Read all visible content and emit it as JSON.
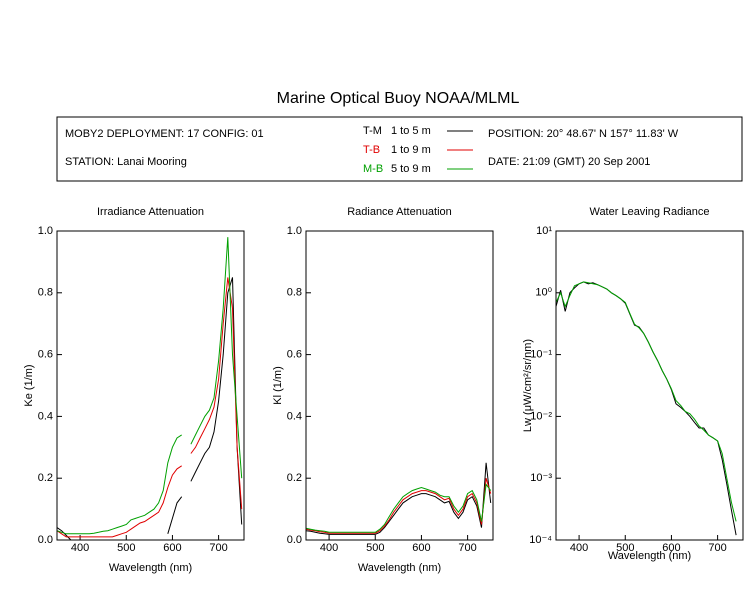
{
  "header": {
    "title": "Marine Optical Buoy NOAA/MLML",
    "deployment": "MOBY2 DEPLOYMENT: 17 CONFIG: 01",
    "station": "STATION: Lanai Mooring",
    "position": "POSITION: 20° 48.67' N   157° 11.83' W",
    "date": "DATE: 21:09 (GMT) 20 Sep 2001",
    "depths": [
      "1 to 5  m",
      "1 to 9  m",
      "5 to 9  m"
    ]
  },
  "chart_data": [
    {
      "type": "line",
      "title": "Irradiance Attenuation",
      "x_label": "Wavelength (nm)",
      "y_label": "Ke  (1/m)",
      "x": [
        350,
        360,
        370,
        380,
        390,
        400,
        410,
        420,
        430,
        440,
        450,
        460,
        470,
        480,
        490,
        500,
        510,
        520,
        530,
        540,
        550,
        560,
        570,
        580,
        590,
        600,
        610,
        620,
        630,
        640,
        650,
        660,
        670,
        680,
        690,
        700,
        710,
        720,
        730,
        740,
        750
      ],
      "xlim": [
        350,
        755
      ],
      "xticks": [
        400,
        500,
        600,
        700
      ],
      "ylim": [
        0,
        1
      ],
      "yticks": [
        {
          "value": 0,
          "label": "0.0"
        },
        0.2,
        0.4,
        0.6,
        0.8,
        {
          "value": 1,
          "label": "1.0"
        }
      ],
      "series": [
        {
          "name": "T-M",
          "color": "#000000",
          "values": [
            0.04,
            0.03,
            0.015,
            0.0,
            null,
            null,
            null,
            null,
            null,
            null,
            null,
            null,
            null,
            null,
            null,
            null,
            null,
            null,
            null,
            null,
            null,
            null,
            null,
            null,
            0.02,
            0.07,
            0.12,
            0.14,
            null,
            0.19,
            0.22,
            0.25,
            0.28,
            0.3,
            0.35,
            0.45,
            0.6,
            0.8,
            0.85,
            0.3,
            0.05
          ]
        },
        {
          "name": "T-B",
          "color": "#e00000",
          "values": [
            0.03,
            0.02,
            0.01,
            0.01,
            0.01,
            0.01,
            0.01,
            0.01,
            0.01,
            0.01,
            0.01,
            0.01,
            0.01,
            0.015,
            0.02,
            0.025,
            0.035,
            0.045,
            0.055,
            0.06,
            0.07,
            0.08,
            0.09,
            0.12,
            0.17,
            0.21,
            0.23,
            0.24,
            null,
            0.28,
            0.3,
            0.33,
            0.36,
            0.39,
            0.43,
            0.52,
            0.7,
            0.85,
            0.75,
            0.3,
            0.1
          ]
        },
        {
          "name": "M-B",
          "color": "#00a000",
          "values": [
            0.03,
            0.025,
            0.02,
            0.02,
            0.02,
            0.02,
            0.02,
            0.02,
            0.022,
            0.025,
            0.028,
            0.03,
            0.035,
            0.04,
            0.045,
            0.05,
            0.065,
            0.07,
            0.075,
            0.08,
            0.09,
            0.1,
            0.12,
            0.16,
            0.25,
            0.3,
            0.33,
            0.34,
            null,
            0.31,
            0.34,
            0.37,
            0.4,
            0.42,
            0.46,
            0.58,
            0.75,
            0.98,
            0.6,
            0.4,
            0.2
          ]
        }
      ]
    },
    {
      "type": "line",
      "title": "Radiance Attenuation",
      "x_label": "Wavelength (nm)",
      "y_label": "Kl  (1/m)",
      "x": [
        350,
        360,
        370,
        380,
        390,
        400,
        410,
        420,
        430,
        440,
        450,
        460,
        470,
        480,
        490,
        500,
        510,
        520,
        530,
        540,
        550,
        560,
        570,
        580,
        590,
        600,
        610,
        620,
        630,
        640,
        650,
        660,
        670,
        680,
        690,
        700,
        710,
        720,
        730,
        740,
        750
      ],
      "xlim": [
        350,
        755
      ],
      "xticks": [
        400,
        500,
        600,
        700
      ],
      "ylim": [
        0,
        1
      ],
      "yticks": [
        {
          "value": 0,
          "label": "0.0"
        },
        0.2,
        0.4,
        0.6,
        0.8,
        {
          "value": 1,
          "label": "1.0"
        }
      ],
      "series": [
        {
          "color": "#000000",
          "values": [
            0.03,
            0.028,
            0.025,
            0.022,
            0.02,
            0.018,
            0.018,
            0.018,
            0.018,
            0.018,
            0.018,
            0.018,
            0.018,
            0.018,
            0.018,
            0.018,
            0.025,
            0.04,
            0.06,
            0.08,
            0.1,
            0.12,
            0.13,
            0.14,
            0.145,
            0.15,
            0.15,
            0.145,
            0.14,
            0.13,
            0.12,
            0.125,
            0.09,
            0.07,
            0.09,
            0.13,
            0.14,
            0.11,
            0.04,
            0.25,
            0.12
          ]
        },
        {
          "color": "#e00000",
          "values": [
            0.035,
            0.032,
            0.03,
            0.027,
            0.025,
            0.022,
            0.022,
            0.022,
            0.022,
            0.022,
            0.022,
            0.022,
            0.022,
            0.022,
            0.022,
            0.022,
            0.03,
            0.045,
            0.065,
            0.09,
            0.11,
            0.13,
            0.14,
            0.15,
            0.155,
            0.16,
            0.16,
            0.155,
            0.15,
            0.14,
            0.13,
            0.135,
            0.1,
            0.08,
            0.1,
            0.14,
            0.15,
            0.12,
            0.05,
            0.2,
            0.15
          ]
        },
        {
          "color": "#00a000",
          "values": [
            0.038,
            0.035,
            0.032,
            0.03,
            0.028,
            0.025,
            0.025,
            0.025,
            0.025,
            0.025,
            0.025,
            0.025,
            0.025,
            0.025,
            0.025,
            0.025,
            0.035,
            0.05,
            0.075,
            0.1,
            0.12,
            0.14,
            0.15,
            0.16,
            0.165,
            0.17,
            0.165,
            0.16,
            0.155,
            0.145,
            0.14,
            0.14,
            0.11,
            0.09,
            0.11,
            0.15,
            0.16,
            0.13,
            0.06,
            0.18,
            0.16
          ]
        }
      ]
    },
    {
      "type": "line",
      "title": "Water Leaving Radiance",
      "x_label": "Wavelength (nm)",
      "y_label": "Lw  (μW/cm²/sr/nm)",
      "x": [
        350,
        360,
        370,
        380,
        390,
        400,
        410,
        420,
        430,
        440,
        450,
        460,
        470,
        480,
        490,
        500,
        510,
        520,
        530,
        540,
        550,
        560,
        570,
        580,
        590,
        600,
        610,
        620,
        630,
        640,
        650,
        660,
        670,
        680,
        690,
        700,
        710,
        720,
        730,
        740,
        750
      ],
      "xlim": [
        350,
        755
      ],
      "xticks": [
        400,
        500,
        600,
        700
      ],
      "log": true,
      "ylim": [
        0.0001,
        10
      ],
      "yticks": [
        {
          "value": 0.0001,
          "label": "10⁻⁴"
        },
        {
          "value": 0.001,
          "label": "10⁻³"
        },
        {
          "value": 0.01,
          "label": "10⁻²"
        },
        {
          "value": 0.1,
          "label": "10⁻¹"
        },
        {
          "value": 1,
          "label": "10⁰"
        },
        {
          "value": 10,
          "label": "10¹"
        }
      ],
      "series": [
        {
          "color": "#000000",
          "values": [
            0.6,
            1.1,
            0.5,
            1.0,
            1.2,
            1.4,
            1.5,
            1.4,
            1.45,
            1.35,
            1.25,
            1.15,
            1.0,
            0.9,
            0.8,
            0.68,
            0.45,
            0.3,
            0.28,
            0.22,
            0.16,
            0.11,
            0.08,
            0.055,
            0.04,
            0.027,
            0.016,
            0.014,
            0.012,
            0.01,
            0.008,
            0.0065,
            0.0065,
            0.005,
            0.0045,
            0.004,
            0.002,
            0.0008,
            0.0003,
            0.00012,
            null
          ]
        },
        {
          "color": "#00a000",
          "values": [
            0.7,
            1.0,
            0.6,
            0.9,
            1.3,
            1.4,
            1.5,
            1.45,
            1.4,
            1.35,
            1.25,
            1.15,
            1.0,
            0.9,
            0.8,
            0.7,
            0.46,
            0.31,
            0.27,
            0.22,
            0.16,
            0.11,
            0.08,
            0.055,
            0.04,
            0.028,
            0.018,
            0.015,
            0.012,
            0.011,
            0.009,
            0.007,
            0.006,
            0.005,
            0.0045,
            0.004,
            0.0025,
            0.001,
            0.0004,
            0.0002,
            null
          ]
        }
      ]
    }
  ]
}
